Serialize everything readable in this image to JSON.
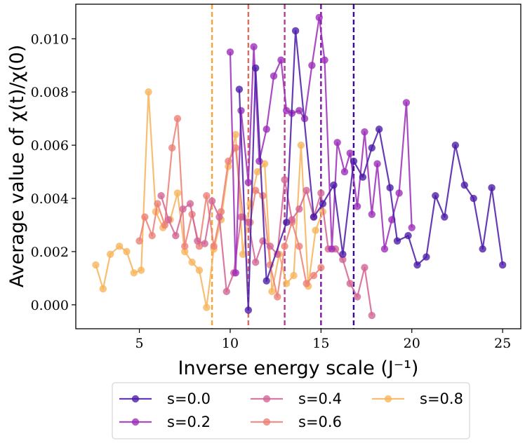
{
  "chart_data": {
    "type": "line",
    "xlabel": "Inverse energy scale (J⁻¹)",
    "ylabel": "Average value of χ(t)/χ(0)",
    "xlim": [
      1.5,
      26
    ],
    "ylim": [
      -0.0009,
      0.0113
    ],
    "xticks": [
      5,
      10,
      15,
      20,
      25
    ],
    "xtick_labels": [
      "5",
      "10",
      "15",
      "20",
      "25"
    ],
    "yticks": [
      0.0,
      0.002,
      0.004,
      0.006,
      0.008,
      0.01
    ],
    "ytick_labels": [
      "0.000",
      "0.002",
      "0.004",
      "0.006",
      "0.008",
      "0.010"
    ],
    "vlines": [
      {
        "x": 9.0,
        "color": "#f7a336"
      },
      {
        "x": 11.0,
        "color": "#e06c5c"
      },
      {
        "x": 13.0,
        "color": "#b53d95"
      },
      {
        "x": 15.0,
        "color": "#7c14a8"
      },
      {
        "x": 16.8,
        "color": "#3d049b"
      }
    ],
    "legend": {
      "placement": "below",
      "ncol": 3
    },
    "series": [
      {
        "name": "s=0.0",
        "color": "#4a1aa6",
        "x": [
          10.5,
          11.0,
          11.4,
          12.0,
          13.1,
          13.6,
          14.6,
          15.1,
          15.7,
          16.2,
          16.8,
          17.3,
          17.8,
          18.2,
          18.8,
          19.2,
          19.8,
          20.3,
          20.8,
          21.3,
          21.8,
          22.4,
          22.9,
          23.4,
          23.9,
          24.4,
          25.0
        ],
        "y": [
          0.0081,
          -0.0002,
          0.0089,
          0.0009,
          0.0031,
          0.0103,
          0.0033,
          0.0038,
          0.0045,
          0.0019,
          0.0054,
          0.0048,
          0.0059,
          0.0066,
          0.0044,
          0.0024,
          0.0026,
          0.0015,
          0.0018,
          0.0041,
          0.0033,
          0.006,
          0.0045,
          0.004,
          0.0021,
          0.0044,
          0.0015
        ]
      },
      {
        "name": "s=0.2",
        "color": "#9b2bb8",
        "x": [
          10.0,
          10.3,
          10.6,
          11.0,
          11.3,
          11.6,
          12.0,
          12.4,
          12.8,
          13.1,
          13.4,
          13.8,
          14.1,
          14.5,
          14.9,
          15.2,
          15.6,
          15.9,
          16.3,
          16.6,
          17.0,
          17.4,
          17.8,
          18.1,
          18.5,
          18.9,
          19.3,
          19.7,
          20.0
        ],
        "y": [
          0.0095,
          0.0012,
          0.0073,
          0.0046,
          0.0097,
          0.0054,
          0.0066,
          0.0086,
          0.0092,
          0.0073,
          0.0072,
          0.0073,
          0.007,
          0.009,
          0.0108,
          0.0092,
          0.0021,
          0.0061,
          0.005,
          0.0057,
          0.0037,
          0.0065,
          0.0034,
          0.0053,
          0.0021,
          0.0032,
          0.0042,
          0.0076,
          0.0029
        ]
      },
      {
        "name": "s=0.4",
        "color": "#d26393",
        "x": [
          6.2,
          6.6,
          7.0,
          7.4,
          7.8,
          8.2,
          8.6,
          9.0,
          9.4,
          9.8,
          10.2,
          10.6,
          11.0,
          11.4,
          11.8,
          12.2,
          12.6,
          13.0,
          13.4,
          13.8,
          14.2,
          14.6,
          15.0,
          15.4,
          15.8,
          16.2,
          16.6,
          17.0,
          17.4,
          17.8
        ],
        "y": [
          0.0041,
          0.0032,
          0.0026,
          0.0036,
          0.0038,
          0.0024,
          0.0023,
          0.0039,
          0.0033,
          0.0005,
          0.0012,
          0.0033,
          0.0031,
          0.0016,
          0.0024,
          0.0022,
          0.0019,
          0.0047,
          0.0032,
          0.0036,
          0.0043,
          0.0033,
          0.0042,
          0.0021,
          0.0021,
          0.0017,
          0.0008,
          0.0003,
          0.0014,
          -0.0004
        ]
      },
      {
        "name": "s=0.6",
        "color": "#ec7f73",
        "x": [
          5.0,
          5.3,
          5.7,
          6.0,
          6.4,
          6.8,
          7.1,
          7.5,
          7.9,
          8.3,
          8.7,
          9.1,
          9.5,
          9.9,
          10.3,
          10.7,
          11.1,
          11.4,
          11.8,
          12.2,
          12.6,
          13.0,
          13.4,
          13.8,
          14.2,
          14.6,
          15.0
        ],
        "y": [
          0.0024,
          0.0033,
          0.0026,
          0.0038,
          0.003,
          0.0059,
          0.007,
          0.0022,
          0.0034,
          0.0022,
          0.0041,
          0.0022,
          0.0035,
          0.0054,
          0.0059,
          0.0033,
          0.0031,
          0.0043,
          0.0041,
          0.0015,
          0.0003,
          0.0022,
          0.0031,
          0.0022,
          0.0008,
          0.0011,
          0.0014
        ]
      },
      {
        "name": "s=0.8",
        "color": "#f7b35a",
        "x": [
          2.6,
          3.0,
          3.4,
          3.9,
          4.3,
          4.7,
          5.1,
          5.5,
          5.9,
          6.3,
          6.7,
          7.1,
          7.5,
          7.9,
          8.3,
          8.7,
          9.1,
          9.5,
          9.9,
          10.3,
          10.7,
          11.1,
          11.5,
          11.9,
          12.3,
          12.7,
          13.1,
          13.5,
          13.9,
          14.3,
          14.7,
          15.1
        ],
        "y": [
          0.0015,
          0.0006,
          0.0019,
          0.0022,
          0.002,
          0.0012,
          0.0013,
          0.008,
          0.0035,
          0.0029,
          0.0032,
          0.0042,
          0.002,
          0.0016,
          0.0013,
          -0.0001,
          0.0021,
          0.0032,
          0.0052,
          0.0064,
          0.0019,
          0.0038,
          0.005,
          0.0053,
          0.0005,
          0.0019,
          0.0008,
          0.0011,
          0.006,
          0.0007,
          0.0028,
          0.0035
        ]
      }
    ]
  }
}
